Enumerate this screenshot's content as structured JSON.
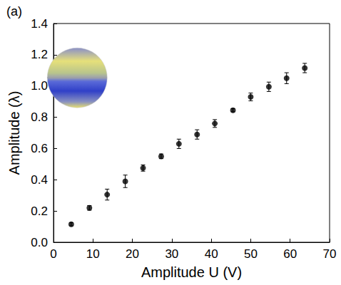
{
  "chart_data": {
    "type": "scatter",
    "title": "(a)",
    "x_label": "Amplitude U (V)",
    "y_label": "Amplitude (λ)",
    "x": [
      4.5,
      9.1,
      13.6,
      18.2,
      22.7,
      27.3,
      31.8,
      36.4,
      40.9,
      45.5,
      50.0,
      54.6,
      59.1,
      63.7
    ],
    "values": [
      0.115,
      0.22,
      0.305,
      0.39,
      0.475,
      0.55,
      0.63,
      0.69,
      0.76,
      0.845,
      0.93,
      0.995,
      1.05,
      1.115
    ],
    "errors": [
      0.01,
      0.015,
      0.035,
      0.04,
      0.02,
      0.015,
      0.03,
      0.03,
      0.025,
      0.01,
      0.025,
      0.03,
      0.035,
      0.03
    ],
    "color": "#000000",
    "marker": "circle",
    "grid": false,
    "xlim": [
      0,
      70
    ],
    "xticks": [
      0,
      10,
      20,
      30,
      40,
      50,
      60,
      70
    ],
    "ylim": [
      0,
      1.4
    ],
    "yticks": [
      {
        "value": 0,
        "label": "0.0"
      },
      0.2,
      0.4,
      0.6,
      0.8,
      {
        "value": 1,
        "label": "1.0"
      },
      1.2,
      1.4
    ]
  }
}
